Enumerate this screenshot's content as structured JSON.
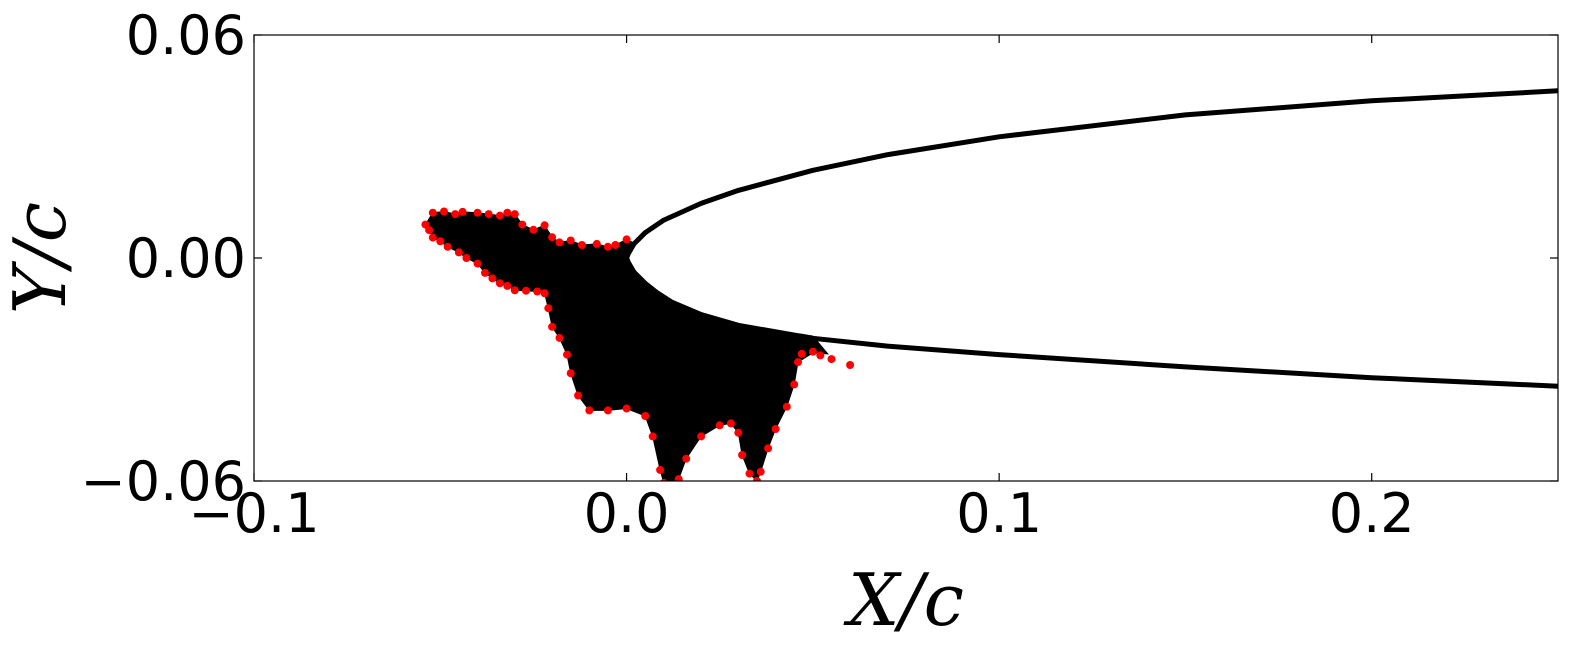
{
  "chart_data": {
    "type": "scatter",
    "xlabel": "X/c",
    "ylabel": "Y/c",
    "xlim": [
      -0.1,
      0.25
    ],
    "ylim": [
      -0.06,
      0.06
    ],
    "x_ticks": [
      {
        "value": -0.1,
        "label": "−0.1"
      },
      {
        "value": 0.0,
        "label": "0.0"
      },
      {
        "value": 0.1,
        "label": "0.1"
      },
      {
        "value": 0.2,
        "label": "0.2"
      }
    ],
    "y_ticks": [
      {
        "value": 0.06,
        "label": "0.06"
      },
      {
        "value": 0.0,
        "label": "0.00"
      },
      {
        "value": -0.06,
        "label": "−0.06"
      }
    ],
    "grid": false,
    "colors": {
      "airfoil": "#000000",
      "ice_fill": "#000000",
      "ice_boundary_points": "#ff0000"
    },
    "series": [
      {
        "kind": "line",
        "points": [
          [
            0.25,
            0.045
          ],
          [
            0.2,
            0.0423
          ],
          [
            0.15,
            0.0385
          ],
          [
            0.1,
            0.0326
          ],
          [
            0.07,
            0.0278
          ],
          [
            0.05,
            0.0236
          ],
          [
            0.03,
            0.0182
          ],
          [
            0.02,
            0.0147
          ],
          [
            0.01,
            0.0102
          ],
          [
            0.005,
            0.0068
          ],
          [
            0.002,
            0.0038
          ],
          [
            0.0005,
            0.0012
          ],
          [
            0.0,
            0.0
          ],
          [
            0.0005,
            -0.0012
          ],
          [
            0.002,
            -0.0038
          ],
          [
            0.005,
            -0.0068
          ],
          [
            0.008,
            -0.0092
          ],
          [
            0.012,
            -0.0118
          ],
          [
            0.02,
            -0.0152
          ],
          [
            0.03,
            -0.0181
          ],
          [
            0.05,
            -0.0216
          ],
          [
            0.07,
            -0.0237
          ],
          [
            0.1,
            -0.026
          ],
          [
            0.15,
            -0.0293
          ],
          [
            0.2,
            -0.0322
          ],
          [
            0.25,
            -0.0345
          ]
        ]
      },
      {
        "kind": "area",
        "points": [
          [
            -0.054,
            0.009
          ],
          [
            -0.052,
            0.0122
          ],
          [
            -0.049,
            0.0125
          ],
          [
            -0.046,
            0.0118
          ],
          [
            -0.044,
            0.0124
          ],
          [
            -0.04,
            0.0122
          ],
          [
            -0.037,
            0.0118
          ],
          [
            -0.034,
            0.0114
          ],
          [
            -0.032,
            0.0122
          ],
          [
            -0.03,
            0.0118
          ],
          [
            -0.028,
            0.009
          ],
          [
            -0.025,
            0.0076
          ],
          [
            -0.022,
            0.0088
          ],
          [
            -0.02,
            0.0056
          ],
          [
            -0.018,
            0.0042
          ],
          [
            -0.015,
            0.0047
          ],
          [
            -0.012,
            0.0035
          ],
          [
            -0.008,
            0.0038
          ],
          [
            -0.005,
            0.003
          ],
          [
            -0.003,
            0.0035
          ],
          [
            0.0,
            0.005
          ],
          [
            0.002,
            0.004
          ],
          [
            0.0005,
            0.0012
          ],
          [
            0.0,
            0.0
          ],
          [
            0.0005,
            -0.0012
          ],
          [
            0.002,
            -0.0038
          ],
          [
            0.005,
            -0.0068
          ],
          [
            0.008,
            -0.0092
          ],
          [
            0.012,
            -0.0118
          ],
          [
            0.02,
            -0.0152
          ],
          [
            0.03,
            -0.0181
          ],
          [
            0.04,
            -0.0198
          ],
          [
            0.047,
            -0.0205
          ],
          [
            0.05,
            -0.021
          ],
          [
            0.054,
            -0.0258
          ],
          [
            0.05,
            -0.0255
          ],
          [
            0.046,
            -0.028
          ],
          [
            0.045,
            -0.034
          ],
          [
            0.043,
            -0.04
          ],
          [
            0.04,
            -0.046
          ],
          [
            0.038,
            -0.0512
          ],
          [
            0.036,
            -0.0575
          ],
          [
            0.035,
            -0.06
          ],
          [
            0.033,
            -0.058
          ],
          [
            0.031,
            -0.053
          ],
          [
            0.03,
            -0.047
          ],
          [
            0.028,
            -0.0445
          ],
          [
            0.025,
            -0.045
          ],
          [
            0.02,
            -0.048
          ],
          [
            0.016,
            -0.054
          ],
          [
            0.014,
            -0.0595
          ],
          [
            0.01,
            -0.0605
          ],
          [
            0.009,
            -0.057
          ],
          [
            0.007,
            -0.048
          ],
          [
            0.005,
            -0.0425
          ],
          [
            0.0,
            -0.0405
          ],
          [
            -0.005,
            -0.041
          ],
          [
            -0.01,
            -0.041
          ],
          [
            -0.013,
            -0.037
          ],
          [
            -0.015,
            -0.031
          ],
          [
            -0.016,
            -0.026
          ],
          [
            -0.018,
            -0.0215
          ],
          [
            -0.02,
            -0.0185
          ],
          [
            -0.021,
            -0.0135
          ],
          [
            -0.022,
            -0.0095
          ],
          [
            -0.024,
            -0.009
          ],
          [
            -0.027,
            -0.0088
          ],
          [
            -0.03,
            -0.0087
          ],
          [
            -0.032,
            -0.0075
          ],
          [
            -0.034,
            -0.0068
          ],
          [
            -0.036,
            -0.0055
          ],
          [
            -0.038,
            -0.004
          ],
          [
            -0.04,
            -0.0015
          ],
          [
            -0.043,
            0.0
          ],
          [
            -0.045,
            0.0015
          ],
          [
            -0.048,
            0.003
          ],
          [
            -0.05,
            0.0045
          ],
          [
            -0.052,
            0.0055
          ],
          [
            -0.053,
            0.0075
          ]
        ]
      },
      {
        "kind": "scatter",
        "points": [
          [
            -0.054,
            0.009
          ],
          [
            -0.052,
            0.0122
          ],
          [
            -0.049,
            0.0125
          ],
          [
            -0.046,
            0.0118
          ],
          [
            -0.044,
            0.0124
          ],
          [
            -0.04,
            0.0122
          ],
          [
            -0.037,
            0.0118
          ],
          [
            -0.034,
            0.0114
          ],
          [
            -0.032,
            0.0122
          ],
          [
            -0.03,
            0.0118
          ],
          [
            -0.028,
            0.009
          ],
          [
            -0.025,
            0.0076
          ],
          [
            -0.022,
            0.0088
          ],
          [
            -0.02,
            0.0056
          ],
          [
            -0.018,
            0.0042
          ],
          [
            -0.015,
            0.0047
          ],
          [
            -0.012,
            0.0035
          ],
          [
            -0.008,
            0.0038
          ],
          [
            -0.005,
            0.003
          ],
          [
            -0.003,
            0.0035
          ],
          [
            0.0,
            0.005
          ],
          [
            0.047,
            -0.0258
          ],
          [
            0.05,
            -0.0252
          ],
          [
            0.052,
            -0.0262
          ],
          [
            0.055,
            -0.0272
          ],
          [
            0.06,
            -0.0288
          ],
          [
            0.046,
            -0.028
          ],
          [
            0.045,
            -0.034
          ],
          [
            0.043,
            -0.04
          ],
          [
            0.04,
            -0.046
          ],
          [
            0.038,
            -0.0512
          ],
          [
            0.036,
            -0.0575
          ],
          [
            0.035,
            -0.06
          ],
          [
            0.033,
            -0.058
          ],
          [
            0.031,
            -0.053
          ],
          [
            0.03,
            -0.047
          ],
          [
            0.028,
            -0.0445
          ],
          [
            0.025,
            -0.045
          ],
          [
            0.02,
            -0.048
          ],
          [
            0.016,
            -0.054
          ],
          [
            0.014,
            -0.0595
          ],
          [
            0.01,
            -0.0605
          ],
          [
            0.009,
            -0.057
          ],
          [
            0.007,
            -0.048
          ],
          [
            0.005,
            -0.0425
          ],
          [
            0.0,
            -0.0405
          ],
          [
            -0.005,
            -0.041
          ],
          [
            -0.01,
            -0.041
          ],
          [
            -0.013,
            -0.037
          ],
          [
            -0.015,
            -0.031
          ],
          [
            -0.016,
            -0.026
          ],
          [
            -0.018,
            -0.0215
          ],
          [
            -0.02,
            -0.0185
          ],
          [
            -0.021,
            -0.0135
          ],
          [
            -0.022,
            -0.0095
          ],
          [
            -0.024,
            -0.009
          ],
          [
            -0.027,
            -0.0088
          ],
          [
            -0.03,
            -0.0087
          ],
          [
            -0.032,
            -0.0075
          ],
          [
            -0.034,
            -0.0068
          ],
          [
            -0.036,
            -0.0055
          ],
          [
            -0.038,
            -0.004
          ],
          [
            -0.04,
            -0.0015
          ],
          [
            -0.043,
            0.0
          ],
          [
            -0.045,
            0.0015
          ],
          [
            -0.048,
            0.003
          ],
          [
            -0.05,
            0.0045
          ],
          [
            -0.052,
            0.0055
          ],
          [
            -0.053,
            0.0075
          ]
        ]
      }
    ]
  }
}
